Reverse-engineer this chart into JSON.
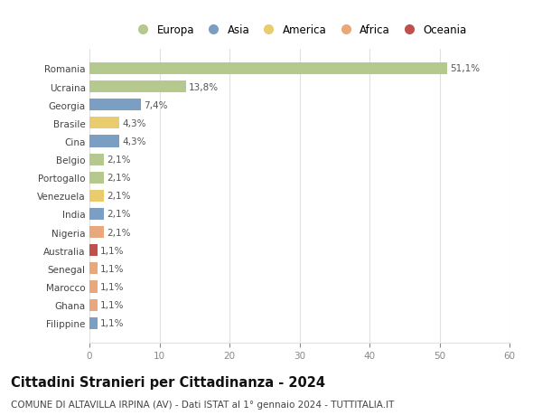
{
  "countries": [
    "Romania",
    "Ucraina",
    "Georgia",
    "Brasile",
    "Cina",
    "Belgio",
    "Portogallo",
    "Venezuela",
    "India",
    "Nigeria",
    "Australia",
    "Senegal",
    "Marocco",
    "Ghana",
    "Filippine"
  ],
  "values": [
    51.1,
    13.8,
    7.4,
    4.3,
    4.3,
    2.1,
    2.1,
    2.1,
    2.1,
    2.1,
    1.1,
    1.1,
    1.1,
    1.1,
    1.1
  ],
  "labels": [
    "51,1%",
    "13,8%",
    "7,4%",
    "4,3%",
    "4,3%",
    "2,1%",
    "2,1%",
    "2,1%",
    "2,1%",
    "2,1%",
    "1,1%",
    "1,1%",
    "1,1%",
    "1,1%",
    "1,1%"
  ],
  "continents": [
    "Europa",
    "Europa",
    "Asia",
    "America",
    "Asia",
    "Europa",
    "Europa",
    "America",
    "Asia",
    "Africa",
    "Oceania",
    "Africa",
    "Africa",
    "Africa",
    "Asia"
  ],
  "continent_colors": {
    "Europa": "#b5c98e",
    "Asia": "#7a9fc2",
    "America": "#e8cc6e",
    "Africa": "#e8a87c",
    "Oceania": "#c0504d"
  },
  "legend_order": [
    "Europa",
    "Asia",
    "America",
    "Africa",
    "Oceania"
  ],
  "title": "Cittadini Stranieri per Cittadinanza - 2024",
  "subtitle": "COMUNE DI ALTAVILLA IRPINA (AV) - Dati ISTAT al 1° gennaio 2024 - TUTTITALIA.IT",
  "xlim": [
    0,
    60
  ],
  "xticks": [
    0,
    10,
    20,
    30,
    40,
    50,
    60
  ],
  "bg_color": "#ffffff",
  "grid_color": "#e0e0e0",
  "bar_height": 0.65,
  "label_fontsize": 7.5,
  "title_fontsize": 10.5,
  "subtitle_fontsize": 7.5,
  "tick_fontsize": 7.5,
  "legend_fontsize": 8.5
}
